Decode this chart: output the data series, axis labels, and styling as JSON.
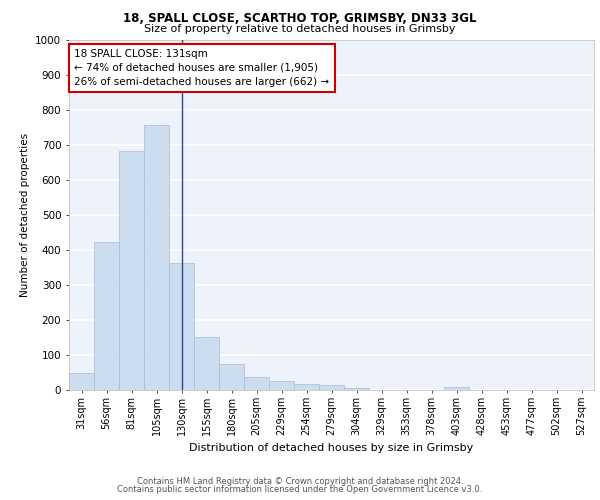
{
  "title1": "18, SPALL CLOSE, SCARTHO TOP, GRIMSBY, DN33 3GL",
  "title2": "Size of property relative to detached houses in Grimsby",
  "xlabel": "Distribution of detached houses by size in Grimsby",
  "ylabel": "Number of detached properties",
  "bar_labels": [
    "31sqm",
    "56sqm",
    "81sqm",
    "105sqm",
    "130sqm",
    "155sqm",
    "180sqm",
    "205sqm",
    "229sqm",
    "254sqm",
    "279sqm",
    "304sqm",
    "329sqm",
    "353sqm",
    "378sqm",
    "403sqm",
    "428sqm",
    "453sqm",
    "477sqm",
    "502sqm",
    "527sqm"
  ],
  "bar_values": [
    50,
    423,
    682,
    757,
    363,
    152,
    75,
    37,
    26,
    18,
    14,
    7,
    0,
    0,
    0,
    10,
    0,
    0,
    0,
    0,
    0
  ],
  "bar_color": "#ccddf0",
  "bar_edge_color": "#aabbd8",
  "annotation_title": "18 SPALL CLOSE: 131sqm",
  "annotation_line1": "← 74% of detached houses are smaller (1,905)",
  "annotation_line2": "26% of semi-detached houses are larger (662) →",
  "annotation_box_color": "#ffffff",
  "annotation_border_color": "#cc0000",
  "ylim": [
    0,
    1000
  ],
  "background_color": "#eef2fa",
  "grid_color": "#ffffff",
  "footer1": "Contains HM Land Registry data © Crown copyright and database right 2024.",
  "footer2": "Contains public sector information licensed under the Open Government Licence v3.0.",
  "property_bar_index": 4
}
